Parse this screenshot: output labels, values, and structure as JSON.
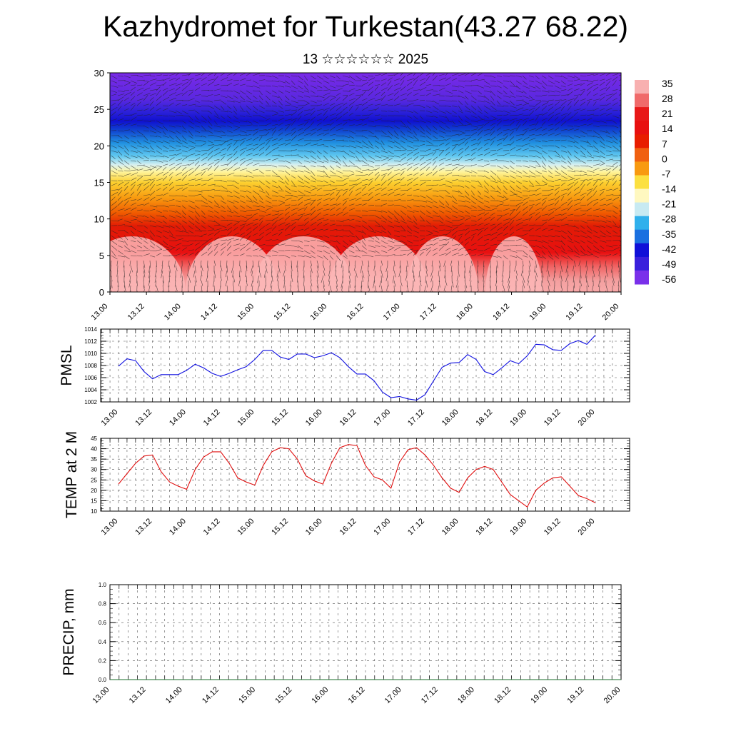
{
  "title": "Kazhydromet for Turkestan(43.27 68.22)",
  "subtitle": "13 ☆☆☆☆☆☆ 2025",
  "colors": {
    "pmsl_line": "#1010e0",
    "temp_line": "#e01010",
    "precip_line": "#1a6e2a",
    "grid": "#555555",
    "frame": "#000000"
  },
  "chart_data": [
    {
      "type": "heatmap",
      "name": "vertical cross-section",
      "xlabel": "",
      "ylabel": "",
      "ylim": [
        0,
        30
      ],
      "y_ticks": [
        "0",
        "5",
        "10",
        "15",
        "20",
        "25",
        "30"
      ],
      "x_ticks": [
        "13.00",
        "13.12",
        "14.00",
        "14.12",
        "15.00",
        "15.12",
        "16.00",
        "16.12",
        "17.00",
        "17.12",
        "18.00",
        "18.12",
        "19.00",
        "19.12",
        "20.00"
      ],
      "colorbar_labels": [
        "35",
        "28",
        "21",
        "14",
        "7",
        "0",
        "-7",
        "-14",
        "-21",
        "-28",
        "-35",
        "-42",
        "-49",
        "-56"
      ],
      "overlay": "wind vectors"
    },
    {
      "type": "line",
      "ylabel": "PMSL",
      "ylim": [
        1002,
        1014
      ],
      "y_ticks": [
        "1002",
        "1004",
        "1006",
        "1008",
        "1010",
        "1012",
        "1014"
      ],
      "x_ticks": [
        "13.00",
        "13.12",
        "14.00",
        "14.12",
        "15.00",
        "15.12",
        "16.00",
        "16.12",
        "17.00",
        "17.12",
        "18.00",
        "18.12",
        "19.00",
        "19.12",
        "20.00"
      ],
      "x_hours": [
        0,
        3,
        6,
        9,
        12,
        15,
        18,
        21,
        24,
        27,
        30,
        33,
        36,
        39,
        42,
        45,
        48,
        51,
        54,
        57,
        60,
        63,
        66,
        69,
        72,
        75,
        78,
        81,
        84,
        87,
        90,
        93,
        96,
        99,
        102,
        105,
        108,
        111,
        114,
        117,
        120,
        123,
        126,
        129,
        132,
        135,
        138,
        141,
        144,
        147,
        150,
        153,
        156,
        159,
        162,
        165,
        168
      ],
      "values": [
        1007.9,
        1009.1,
        1008.8,
        1007.0,
        1005.8,
        1006.5,
        1006.5,
        1006.5,
        1007.2,
        1008.2,
        1007.6,
        1006.7,
        1006.2,
        1006.7,
        1007.3,
        1007.8,
        1009.0,
        1010.5,
        1010.5,
        1009.4,
        1009.0,
        1009.9,
        1009.9,
        1009.3,
        1009.6,
        1010.1,
        1009.3,
        1007.8,
        1006.6,
        1006.6,
        1005.5,
        1003.6,
        1002.7,
        1002.9,
        1002.5,
        1002.3,
        1003.2,
        1005.5,
        1007.7,
        1008.4,
        1008.5,
        1009.8,
        1009.0,
        1007.0,
        1006.5,
        1007.6,
        1008.8,
        1008.3,
        1009.6,
        1011.5,
        1011.4,
        1010.6,
        1010.5,
        1011.6,
        1012.1,
        1011.5,
        1013.0
      ]
    },
    {
      "type": "line",
      "ylabel": "TEMP at 2 M",
      "ylim": [
        10,
        45
      ],
      "y_ticks": [
        "10",
        "15",
        "20",
        "25",
        "30",
        "35",
        "40",
        "45"
      ],
      "x_ticks": [
        "13.00",
        "13.12",
        "14.00",
        "14.12",
        "15.00",
        "15.12",
        "16.00",
        "16.12",
        "17.00",
        "17.12",
        "18.00",
        "18.12",
        "19.00",
        "19.12",
        "20.00"
      ],
      "x_hours": [
        0,
        3,
        6,
        9,
        12,
        15,
        18,
        21,
        24,
        27,
        30,
        33,
        36,
        39,
        42,
        45,
        48,
        51,
        54,
        57,
        60,
        63,
        66,
        69,
        72,
        75,
        78,
        81,
        84,
        87,
        90,
        93,
        96,
        99,
        102,
        105,
        108,
        111,
        114,
        117,
        120,
        123,
        126,
        129,
        132,
        135,
        138,
        141,
        144,
        147,
        150,
        153,
        156,
        159,
        162,
        165,
        168
      ],
      "values": [
        23,
        28,
        33,
        36.5,
        37,
        29,
        24,
        22,
        20.5,
        30,
        36,
        38.5,
        38.5,
        33,
        26,
        24,
        22.5,
        32,
        38.5,
        40.5,
        40,
        35,
        27,
        24.5,
        23,
        33,
        40.5,
        42,
        41.5,
        32,
        26.5,
        25,
        21,
        33.5,
        39.5,
        40.5,
        37,
        32,
        26,
        21,
        19,
        26,
        30,
        31.5,
        30,
        24,
        18,
        15,
        12,
        20,
        23.5,
        26,
        26.5,
        22,
        17.5,
        16,
        14
      ]
    },
    {
      "type": "line",
      "ylabel": "PRECIP, mm",
      "ylim": [
        0,
        1
      ],
      "y_ticks": [
        "0.0",
        "0.2",
        "0.4",
        "0.6",
        "0.8",
        "1.0"
      ],
      "x_ticks": [
        "13.00",
        "13.12",
        "14.00",
        "14.12",
        "15.00",
        "15.12",
        "16.00",
        "16.12",
        "17.00",
        "17.12",
        "18.00",
        "18.12",
        "19.00",
        "19.12",
        "20.00"
      ],
      "x_hours": [
        0,
        168
      ],
      "values": [
        0,
        0
      ]
    }
  ]
}
